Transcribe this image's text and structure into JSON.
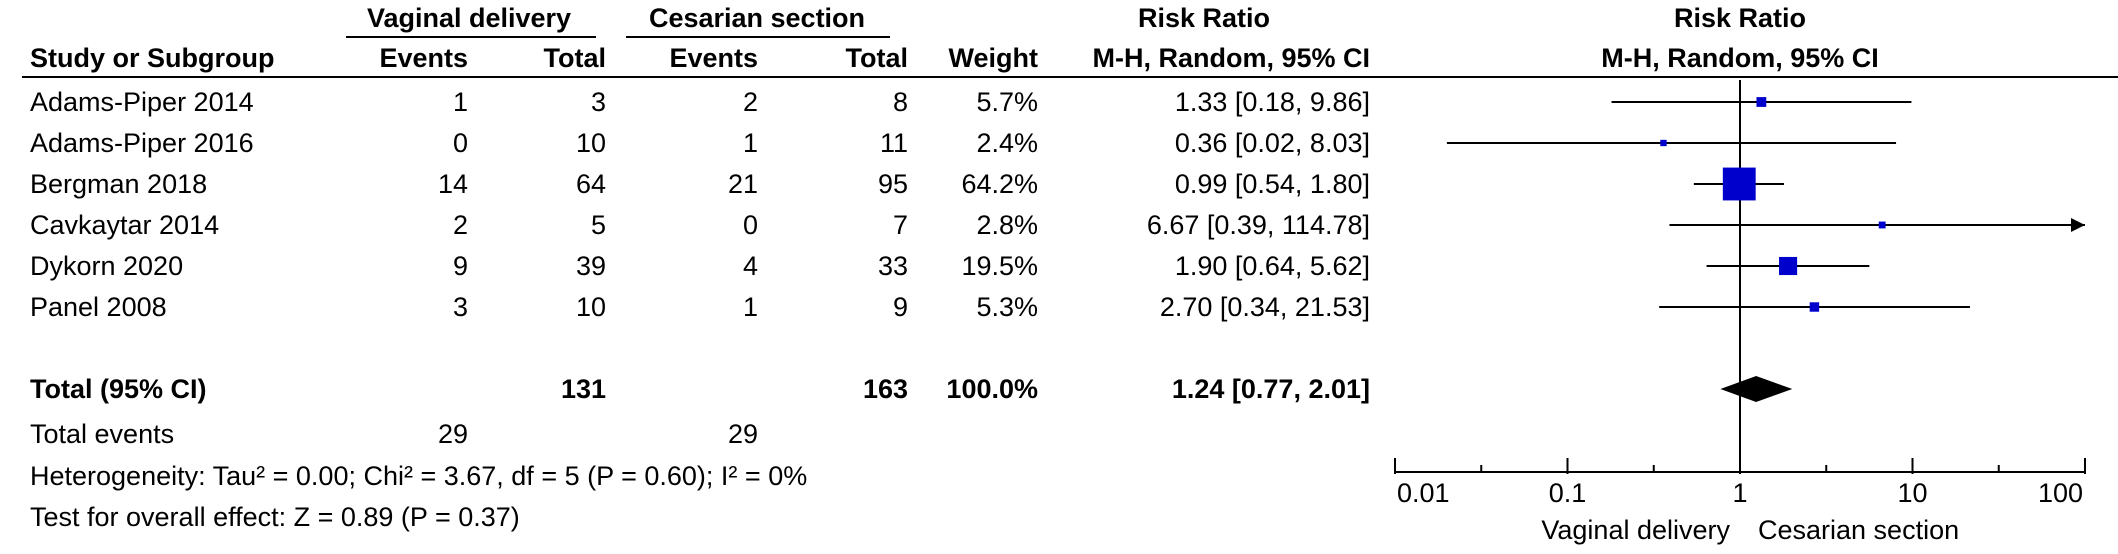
{
  "header": {
    "group1": "Vaginal delivery",
    "group2": "Cesarian section",
    "rr_title": "Risk Ratio",
    "plot_title": "Risk Ratio",
    "plot_method": "M-H, Random, 95% CI",
    "col_study": "Study or Subgroup",
    "col_events1": "Events",
    "col_total1": "Total",
    "col_events2": "Events",
    "col_total2": "Total",
    "col_weight": "Weight",
    "col_rr": "M-H, Random, 95% CI"
  },
  "rows": [
    {
      "study": "Adams-Piper 2014",
      "e1": "1",
      "t1": "3",
      "e2": "2",
      "t2": "8",
      "weight": "5.7%",
      "ci": "1.33 [0.18, 9.86]"
    },
    {
      "study": "Adams-Piper 2016",
      "e1": "0",
      "t1": "10",
      "e2": "1",
      "t2": "11",
      "weight": "2.4%",
      "ci": "0.36 [0.02, 8.03]"
    },
    {
      "study": "Bergman 2018",
      "e1": "14",
      "t1": "64",
      "e2": "21",
      "t2": "95",
      "weight": "64.2%",
      "ci": "0.99 [0.54, 1.80]"
    },
    {
      "study": "Cavkaytar 2014",
      "e1": "2",
      "t1": "5",
      "e2": "0",
      "t2": "7",
      "weight": "2.8%",
      "ci": "6.67 [0.39, 114.78]"
    },
    {
      "study": "Dykorn 2020",
      "e1": "9",
      "t1": "39",
      "e2": "4",
      "t2": "33",
      "weight": "19.5%",
      "ci": "1.90 [0.64, 5.62]"
    },
    {
      "study": "Panel 2008",
      "e1": "3",
      "t1": "10",
      "e2": "1",
      "t2": "9",
      "weight": "5.3%",
      "ci": "2.70 [0.34, 21.53]"
    }
  ],
  "total": {
    "label": "Total (95% CI)",
    "t1": "131",
    "t2": "163",
    "weight": "100.0%",
    "ci": "1.24 [0.77, 2.01]"
  },
  "events": {
    "label": "Total events",
    "e1": "29",
    "e2": "29"
  },
  "heterogeneity": "Heterogeneity: Tau² = 0.00; Chi² = 3.67, df = 5 (P = 0.60); I² = 0%",
  "overall_effect": "Test for overall effect: Z = 0.89 (P = 0.37)",
  "axis": {
    "left_label": "Vaginal delivery",
    "right_label": "Cesarian section"
  },
  "colors": {
    "marker": "#0000cc",
    "line": "#000000",
    "diamond": "#000000"
  },
  "chart_data": {
    "type": "forest",
    "scale": "log",
    "xlim": [
      0.01,
      100
    ],
    "ticks": [
      {
        "v": 0.01,
        "label": "0.01"
      },
      {
        "v": 0.1,
        "label": "0.1"
      },
      {
        "v": 1,
        "label": "1"
      },
      {
        "v": 10,
        "label": "10"
      },
      {
        "v": 100,
        "label": "100"
      }
    ],
    "studies": [
      {
        "name": "Adams-Piper 2014",
        "rr": 1.33,
        "lo": 0.18,
        "hi": 9.86,
        "weight": 5.7
      },
      {
        "name": "Adams-Piper 2016",
        "rr": 0.36,
        "lo": 0.02,
        "hi": 8.03,
        "weight": 2.4
      },
      {
        "name": "Bergman 2018",
        "rr": 0.99,
        "lo": 0.54,
        "hi": 1.8,
        "weight": 64.2
      },
      {
        "name": "Cavkaytar 2014",
        "rr": 6.67,
        "lo": 0.39,
        "hi": 114.78,
        "weight": 2.8
      },
      {
        "name": "Dykorn 2020",
        "rr": 1.9,
        "lo": 0.64,
        "hi": 5.62,
        "weight": 19.5
      },
      {
        "name": "Panel 2008",
        "rr": 2.7,
        "lo": 0.34,
        "hi": 21.53,
        "weight": 5.3
      }
    ],
    "pooled": {
      "rr": 1.24,
      "lo": 0.77,
      "hi": 2.01
    }
  }
}
